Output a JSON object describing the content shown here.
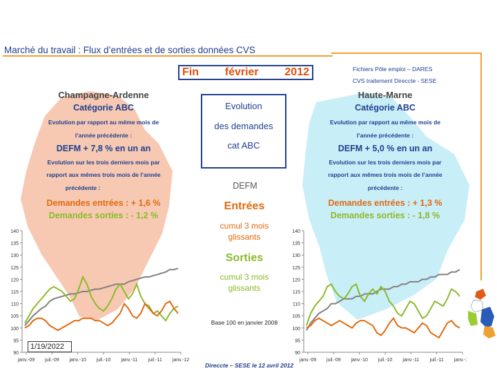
{
  "title": "Marché du travail : Flux d’entrées et de sorties données CVS",
  "source": {
    "line1": "Fichiers Pôle emploi – DARES",
    "line2": "CVS traitement Direccte - SESE"
  },
  "header": {
    "word1": "Fin",
    "word2": "février",
    "word3": "2012"
  },
  "center": {
    "evo1": "Evolution",
    "evo2": "des demandes",
    "evo3": "cat ABC",
    "defm": "DEFM",
    "entrees": "Entrées",
    "entrees_sub1": "cumul 3 mois",
    "entrees_sub2": "glissants",
    "sorties": "Sorties",
    "sorties_sub1": "cumul 3 mois",
    "sorties_sub2": "glissants",
    "base": "Base 100 en janvier 2008"
  },
  "footer": {
    "credit": "Direccte – SESE le 12 avril 2012",
    "date": "1/19/2022"
  },
  "left": {
    "region": "Champagne-Ardenne",
    "category": "Catégorie ABC",
    "evo_year_1": "Evolution par rapport au même mois de",
    "evo_year_2": "l’année précédente :",
    "defm": "DEFM + 7,8 % en un an",
    "evo_3m_1": "Evolution sur les trois derniers mois par",
    "evo_3m_2": "rapport aux mêmes trois mois de l’année",
    "evo_3m_3": "précédente :",
    "entrees": "Demandes entrées : + 1,6 %",
    "sorties": "Demandes sorties : - 1,2 %"
  },
  "right": {
    "region": "Haute-Marne",
    "category": "Catégorie ABC",
    "evo_year_1": "Evolution par rapport au même mois de",
    "evo_year_2": "l’année précédente :",
    "defm": "DEFM + 5,0 % en un an",
    "evo_3m_1": "Evolution sur les trois derniers mois par",
    "evo_3m_2": "rapport aux mêmes trois mois de l’année",
    "evo_3m_3": "précédente :",
    "entrees": "Demandes entrées : + 1,3 %",
    "sorties": "Demandes sorties : - 1,8 %"
  },
  "colors": {
    "defm": "#808080",
    "entrees": "#8cb92a",
    "sorties": "#e06a10",
    "map_left": "#f7c9b2",
    "map_right": "#c8eef7"
  },
  "chart_data": [
    {
      "type": "line",
      "title": "Champagne-Ardenne",
      "x_ticks": [
        "janv.-09",
        "juil.-09",
        "janv.-10",
        "juil.-10",
        "janv.-11",
        "juil.-11",
        "janv.-12"
      ],
      "y_ticks": [
        90,
        95,
        100,
        105,
        110,
        115,
        120,
        125,
        130,
        135,
        140
      ],
      "ylim": [
        90,
        140
      ],
      "series": [
        {
          "name": "DEFM",
          "values": [
            101,
            103,
            105,
            106.5,
            108,
            109,
            111,
            112,
            112.5,
            113,
            113.5,
            114,
            114,
            114.5,
            115,
            115,
            115.5,
            116,
            116,
            116.5,
            117,
            117.5,
            118,
            118,
            118,
            119,
            119.5,
            120,
            120.5,
            121,
            121,
            121.5,
            122,
            122.5,
            123,
            124,
            124,
            124.5
          ]
        },
        {
          "name": "Entrées",
          "values": [
            102,
            105,
            108,
            110,
            112,
            114,
            116,
            117,
            116,
            115,
            113,
            111,
            112,
            116,
            121,
            118,
            113,
            110,
            108,
            107,
            109,
            112,
            116,
            118,
            115,
            112,
            114,
            118,
            113,
            110,
            109,
            106,
            107,
            105,
            103,
            106,
            108,
            109
          ]
        },
        {
          "name": "Sorties",
          "values": [
            100,
            101,
            103,
            104,
            104,
            103,
            101,
            100,
            99,
            100,
            101,
            102,
            103,
            103,
            104,
            104,
            104,
            103,
            103,
            102,
            101,
            102,
            104,
            106,
            110,
            108,
            105,
            104,
            106,
            110,
            108,
            106,
            105,
            107,
            110,
            111,
            108,
            106
          ]
        }
      ]
    },
    {
      "type": "line",
      "title": "Haute-Marne",
      "x_ticks": [
        "janv.-09",
        "juil.-09",
        "janv.-10",
        "juil.-10",
        "janv.-11",
        "juil.-11",
        "janv.-12"
      ],
      "y_ticks": [
        90,
        95,
        100,
        105,
        110,
        115,
        120,
        125,
        130,
        135,
        140
      ],
      "ylim": [
        90,
        140
      ],
      "series": [
        {
          "name": "DEFM",
          "values": [
            99,
            102,
            104,
            106,
            107,
            108,
            110,
            110,
            111,
            112,
            112,
            112,
            113,
            113,
            114,
            114,
            114,
            115,
            116,
            116,
            116,
            117,
            117,
            118,
            118,
            119,
            119,
            119,
            120,
            120,
            121,
            121,
            122,
            122,
            122,
            123,
            123,
            124
          ]
        },
        {
          "name": "Entrées",
          "values": [
            101,
            106,
            109,
            111,
            113,
            117,
            118,
            115,
            113,
            112,
            114,
            117,
            118,
            113,
            111,
            114,
            116,
            114,
            117,
            115,
            111,
            109,
            106,
            105,
            108,
            111,
            110,
            107,
            104,
            105,
            108,
            111,
            110,
            109,
            112,
            116,
            115,
            113
          ]
        },
        {
          "name": "Sorties",
          "values": [
            100,
            101,
            103,
            104,
            103,
            102,
            101,
            102,
            103,
            102,
            101,
            100,
            102,
            103,
            103,
            102,
            101,
            98,
            97,
            99,
            102,
            104,
            101,
            100,
            100,
            99,
            98,
            100,
            102,
            101,
            98,
            97,
            96,
            99,
            102,
            103,
            101,
            100
          ]
        }
      ]
    }
  ]
}
